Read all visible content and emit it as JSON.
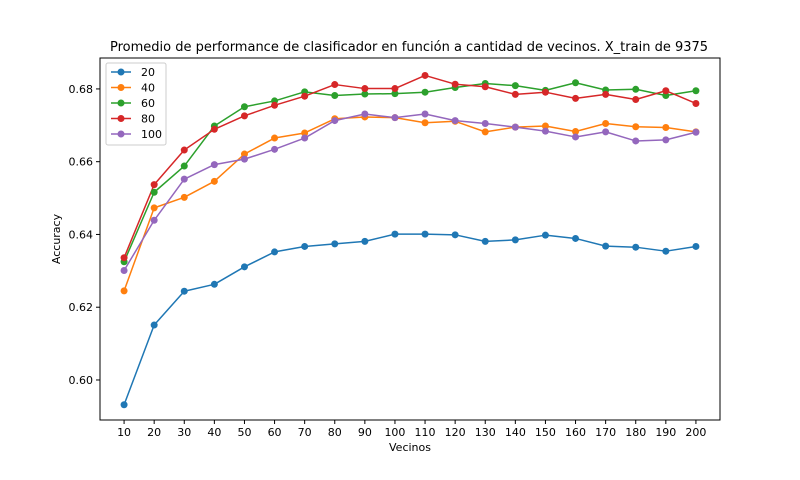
{
  "chart_data": {
    "type": "line",
    "title": "Promedio de performance de clasificador en función a cantidad de vecinos. X_train de 9375",
    "xlabel": "Vecinos",
    "ylabel": "Accuracy",
    "x": [
      10,
      20,
      30,
      40,
      50,
      60,
      70,
      80,
      90,
      100,
      110,
      120,
      130,
      140,
      150,
      160,
      170,
      180,
      190,
      200
    ],
    "xlim": [
      2,
      208
    ],
    "ylim": [
      0.589,
      0.6885
    ],
    "yticks": [
      0.6,
      0.62,
      0.64,
      0.66,
      0.68
    ],
    "yticklabels": [
      "0.60",
      "0.62",
      "0.64",
      "0.66",
      "0.68"
    ],
    "grid": false,
    "legend_position": "top-left",
    "series": [
      {
        "name": "20",
        "color": "#1f77b4",
        "values": [
          0.5932,
          0.6151,
          0.6244,
          0.6263,
          0.6311,
          0.6352,
          0.6367,
          0.6374,
          0.6381,
          0.6401,
          0.6401,
          0.6399,
          0.6381,
          0.6385,
          0.6398,
          0.6389,
          0.6368,
          0.6365,
          0.6354,
          0.6367
        ]
      },
      {
        "name": "40",
        "color": "#ff7f0e",
        "values": [
          0.6245,
          0.6473,
          0.6502,
          0.6546,
          0.6621,
          0.6665,
          0.6679,
          0.6718,
          0.6723,
          0.6721,
          0.6707,
          0.6711,
          0.6682,
          0.6695,
          0.6698,
          0.6683,
          0.6705,
          0.6696,
          0.6694,
          0.6682
        ]
      },
      {
        "name": "60",
        "color": "#2ca02c",
        "values": [
          0.6325,
          0.6516,
          0.6588,
          0.6698,
          0.6751,
          0.6767,
          0.6792,
          0.6782,
          0.6786,
          0.6787,
          0.6791,
          0.6804,
          0.6815,
          0.6809,
          0.6796,
          0.6817,
          0.6797,
          0.6799,
          0.6782,
          0.6795
        ]
      },
      {
        "name": "80",
        "color": "#d62728",
        "values": [
          0.6336,
          0.6537,
          0.6632,
          0.6689,
          0.6726,
          0.6755,
          0.678,
          0.6812,
          0.6801,
          0.6801,
          0.6837,
          0.6813,
          0.6806,
          0.6785,
          0.6791,
          0.6774,
          0.6785,
          0.6771,
          0.6795,
          0.676
        ]
      },
      {
        "name": "100",
        "color": "#9467bd",
        "values": [
          0.6301,
          0.6439,
          0.6552,
          0.6592,
          0.6607,
          0.6634,
          0.6665,
          0.6713,
          0.6731,
          0.6721,
          0.6731,
          0.6713,
          0.6705,
          0.6695,
          0.6684,
          0.6668,
          0.6682,
          0.6657,
          0.666,
          0.6681
        ]
      }
    ]
  }
}
